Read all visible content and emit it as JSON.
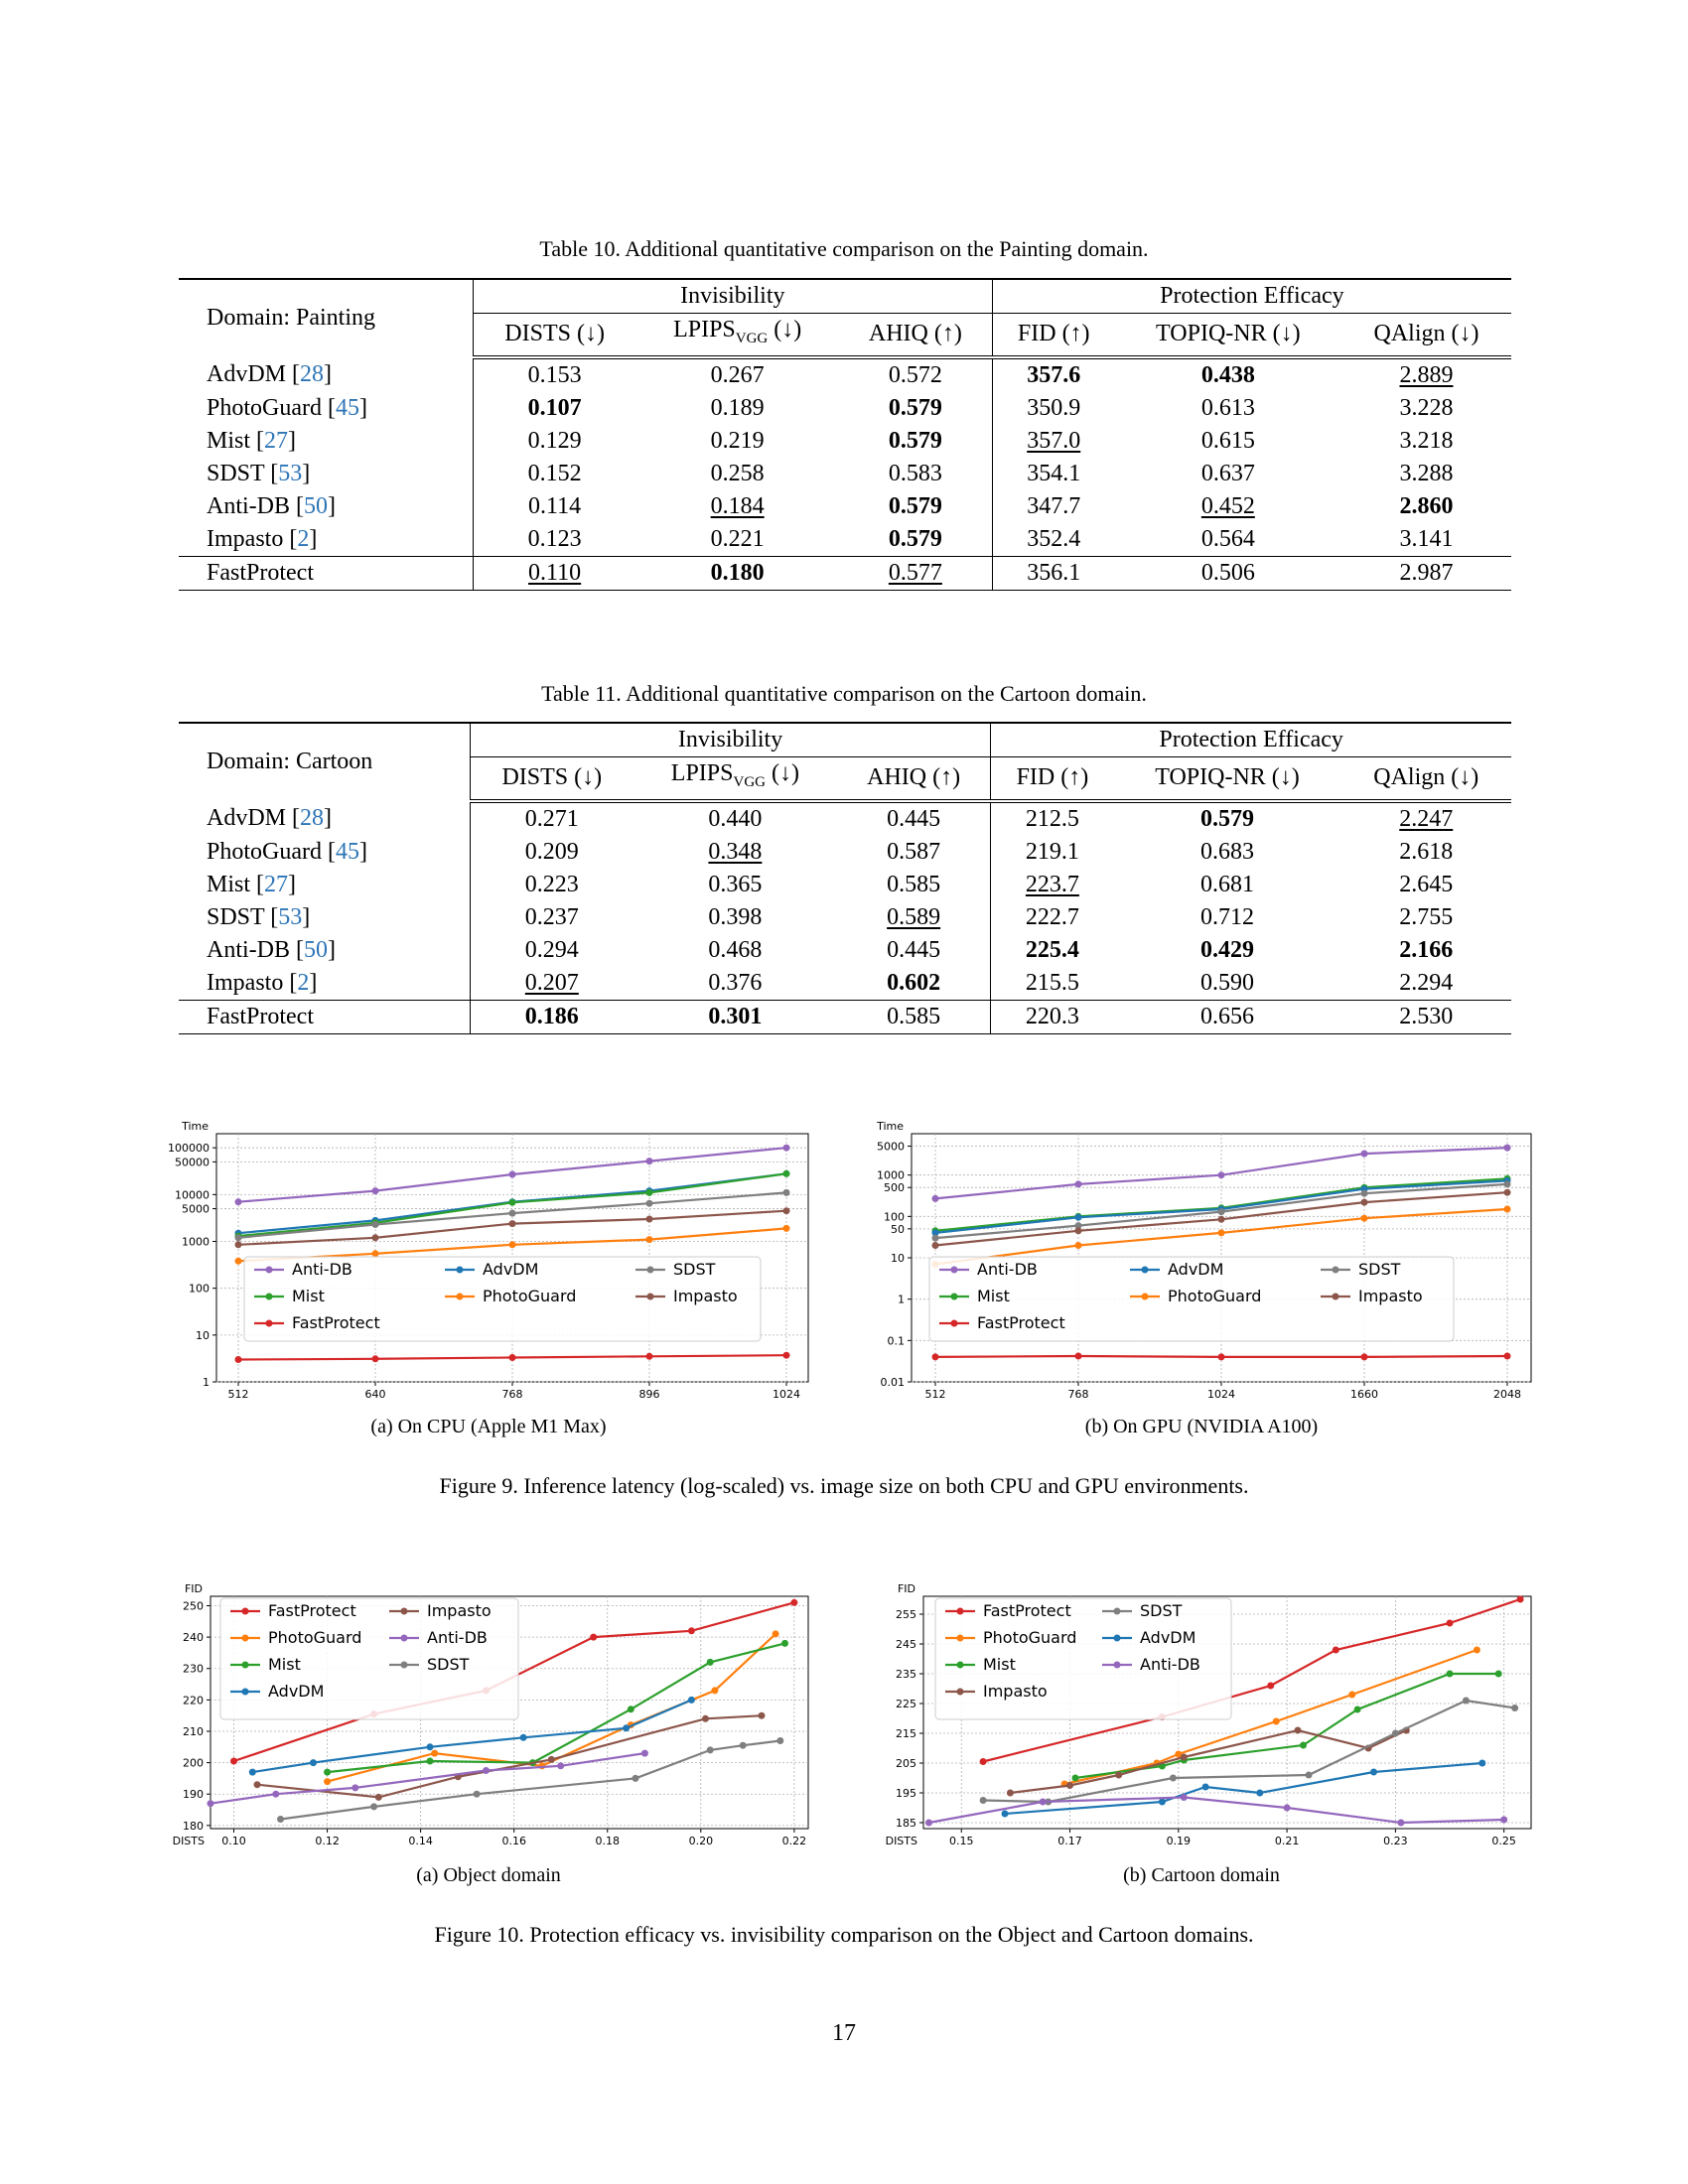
{
  "table10": {
    "caption": "Table 10. Additional quantitative comparison on the Painting domain.",
    "domain_label": "Domain: Painting",
    "group_invisibility": "Invisibility",
    "group_protection": "Protection Efficacy",
    "rows": [
      {
        "name": "AdvDM",
        "ref": "28",
        "v": [
          "0.153",
          "0.267",
          "0.572",
          "357.6",
          "0.438",
          "2.889"
        ]
      },
      {
        "name": "PhotoGuard",
        "ref": "45",
        "v": [
          "0.107",
          "0.189",
          "0.579",
          "350.9",
          "0.613",
          "3.228"
        ]
      },
      {
        "name": "Mist",
        "ref": "27",
        "v": [
          "0.129",
          "0.219",
          "0.579",
          "357.0",
          "0.615",
          "3.218"
        ]
      },
      {
        "name": "SDST",
        "ref": "53",
        "v": [
          "0.152",
          "0.258",
          "0.583",
          "354.1",
          "0.637",
          "3.288"
        ]
      },
      {
        "name": "Anti-DB",
        "ref": "50",
        "v": [
          "0.114",
          "0.184",
          "0.579",
          "347.7",
          "0.452",
          "2.860"
        ]
      },
      {
        "name": "Impasto",
        "ref": "2",
        "v": [
          "0.123",
          "0.221",
          "0.579",
          "352.4",
          "0.564",
          "3.141"
        ]
      },
      {
        "name": "FastProtect",
        "ref": "",
        "v": [
          "0.110",
          "0.180",
          "0.577",
          "356.1",
          "0.506",
          "2.987"
        ]
      }
    ]
  },
  "table11": {
    "caption": "Table 11. Additional quantitative comparison on the Cartoon domain.",
    "domain_label": "Domain: Cartoon",
    "group_invisibility": "Invisibility",
    "group_protection": "Protection Efficacy",
    "rows": [
      {
        "name": "AdvDM",
        "ref": "28",
        "v": [
          "0.271",
          "0.440",
          "0.445",
          "212.5",
          "0.579",
          "2.247"
        ]
      },
      {
        "name": "PhotoGuard",
        "ref": "45",
        "v": [
          "0.209",
          "0.348",
          "0.587",
          "219.1",
          "0.683",
          "2.618"
        ]
      },
      {
        "name": "Mist",
        "ref": "27",
        "v": [
          "0.223",
          "0.365",
          "0.585",
          "223.7",
          "0.681",
          "2.645"
        ]
      },
      {
        "name": "SDST",
        "ref": "53",
        "v": [
          "0.237",
          "0.398",
          "0.589",
          "222.7",
          "0.712",
          "2.755"
        ]
      },
      {
        "name": "Anti-DB",
        "ref": "50",
        "v": [
          "0.294",
          "0.468",
          "0.445",
          "225.4",
          "0.429",
          "2.166"
        ]
      },
      {
        "name": "Impasto",
        "ref": "2",
        "v": [
          "0.207",
          "0.376",
          "0.602",
          "215.5",
          "0.590",
          "2.294"
        ]
      },
      {
        "name": "FastProtect",
        "ref": "",
        "v": [
          "0.186",
          "0.301",
          "0.585",
          "220.3",
          "0.656",
          "2.530"
        ]
      }
    ]
  },
  "columns": {
    "dists": "DISTS (↓)",
    "lpips_main": "LPIPS",
    "lpips_sub": "VGG",
    "lpips_arrow": " (↓)",
    "ahiq": "AHIQ (↑)",
    "fid": "FID (↑)",
    "topiq": "TOPIQ-NR (↓)",
    "qalign": "QAlign (↓)"
  },
  "figure9": {
    "caption": "Figure 9. Inference latency (log-scaled) vs. image size on both CPU and GPU environments.",
    "subcaption_a": "(a) On CPU (Apple M1 Max)",
    "subcaption_b": "(b) On GPU (NVIDIA A100)"
  },
  "figure10": {
    "caption": "Figure 10. Protection efficacy vs. invisibility comparison on the Object and Cartoon domains.",
    "subcaption_a": "(a) Object domain",
    "subcaption_b": "(b) Cartoon domain"
  },
  "page_number": "17",
  "colors": {
    "FastProtect": "#d62728",
    "PhotoGuard": "#ff7f0e",
    "Mist": "#2ca02c",
    "AdvDM": "#1f77b4",
    "Impasto": "#8c564b",
    "Anti-DB": "#9467bd",
    "SDST": "#7f7f7f",
    "cite": "#2e75b6"
  },
  "chart_data": [
    {
      "id": "fig9a",
      "type": "line",
      "yscale": "log",
      "title": "",
      "xlabel": "",
      "ylabel": "Time",
      "categories": [
        "512",
        "640",
        "768",
        "896",
        "1024"
      ],
      "yticks": [
        1,
        10,
        100,
        1000,
        5000,
        10000,
        50000,
        100000
      ],
      "yticklabels": [
        "1",
        "10",
        "100",
        "1000",
        "5000",
        "10000",
        "50000",
        "100000"
      ],
      "ylim": [
        1,
        200000
      ],
      "legend_cols": [
        [
          "Anti-DB",
          "Mist",
          "FastProtect"
        ],
        [
          "AdvDM",
          "PhotoGuard"
        ],
        [
          "SDST",
          "Impasto"
        ]
      ],
      "series": [
        {
          "name": "Anti-DB",
          "values": [
            7000,
            12000,
            27000,
            52000,
            100000
          ]
        },
        {
          "name": "AdvDM",
          "values": [
            1500,
            2800,
            7000,
            12000,
            28000
          ]
        },
        {
          "name": "Mist",
          "values": [
            1300,
            2500,
            6800,
            11000,
            28000
          ]
        },
        {
          "name": "SDST",
          "values": [
            1200,
            2300,
            4000,
            6500,
            11000
          ]
        },
        {
          "name": "Impasto",
          "values": [
            850,
            1200,
            2400,
            3000,
            4500
          ]
        },
        {
          "name": "PhotoGuard",
          "values": [
            380,
            550,
            850,
            1100,
            1900
          ]
        },
        {
          "name": "FastProtect",
          "values": [
            3,
            3.1,
            3.3,
            3.5,
            3.7
          ]
        }
      ]
    },
    {
      "id": "fig9b",
      "type": "line",
      "yscale": "log",
      "title": "",
      "xlabel": "",
      "ylabel": "Time",
      "categories": [
        "512",
        "768",
        "1024",
        "1660",
        "2048"
      ],
      "yticks": [
        0.01,
        0.1,
        1,
        10,
        50,
        100,
        500,
        1000,
        5000
      ],
      "yticklabels": [
        "0.01",
        "0.1",
        "1",
        "10",
        "50",
        "100",
        "500",
        "1000",
        "5000"
      ],
      "ylim": [
        0.01,
        10000
      ],
      "legend_cols": [
        [
          "Anti-DB",
          "Mist",
          "FastProtect"
        ],
        [
          "AdvDM",
          "PhotoGuard"
        ],
        [
          "SDST",
          "Impasto"
        ]
      ],
      "series": [
        {
          "name": "Anti-DB",
          "values": [
            270,
            600,
            1000,
            3300,
            4600
          ]
        },
        {
          "name": "Mist",
          "values": [
            45,
            100,
            160,
            500,
            820
          ]
        },
        {
          "name": "AdvDM",
          "values": [
            40,
            95,
            150,
            460,
            730
          ]
        },
        {
          "name": "SDST",
          "values": [
            30,
            60,
            130,
            360,
            600
          ]
        },
        {
          "name": "Impasto",
          "values": [
            20,
            45,
            85,
            220,
            380
          ]
        },
        {
          "name": "PhotoGuard",
          "values": [
            7,
            20,
            40,
            90,
            150
          ]
        },
        {
          "name": "FastProtect",
          "values": [
            0.04,
            0.042,
            0.04,
            0.04,
            0.042
          ]
        }
      ]
    },
    {
      "id": "fig10a",
      "type": "line",
      "title": "",
      "xlabel": "DISTS",
      "ylabel": "FID",
      "xlim": [
        0.095,
        0.223
      ],
      "ylim": [
        179,
        253
      ],
      "xticks": [
        0.1,
        0.12,
        0.14,
        0.16,
        0.18,
        0.2,
        0.22
      ],
      "xticklabels": [
        "0.10",
        "0.12",
        "0.14",
        "0.16",
        "0.18",
        "0.20",
        "0.22"
      ],
      "yticks": [
        180,
        190,
        200,
        210,
        220,
        230,
        240,
        250
      ],
      "yticklabels": [
        "180",
        "190",
        "200",
        "210",
        "220",
        "230",
        "240",
        "250"
      ],
      "legend_cols": [
        [
          "FastProtect",
          "PhotoGuard",
          "Mist",
          "AdvDM"
        ],
        [
          "Impasto",
          "Anti-DB",
          "SDST"
        ]
      ],
      "series": [
        {
          "name": "FastProtect",
          "x": [
            0.1,
            0.13,
            0.154,
            0.177,
            0.198,
            0.22
          ],
          "y": [
            200.5,
            215.5,
            223,
            240,
            242,
            251
          ]
        },
        {
          "name": "PhotoGuard",
          "x": [
            0.12,
            0.143,
            0.166,
            0.185,
            0.203,
            0.216
          ],
          "y": [
            194,
            203,
            199,
            212,
            223,
            241
          ]
        },
        {
          "name": "Mist",
          "x": [
            0.12,
            0.142,
            0.164,
            0.185,
            0.202,
            0.218
          ],
          "y": [
            197,
            200.5,
            200,
            217,
            232,
            238
          ]
        },
        {
          "name": "AdvDM",
          "x": [
            0.104,
            0.117,
            0.142,
            0.162,
            0.184,
            0.198
          ],
          "y": [
            197,
            200,
            205,
            208,
            211,
            220
          ]
        },
        {
          "name": "Impasto",
          "x": [
            0.105,
            0.131,
            0.148,
            0.168,
            0.201,
            0.213
          ],
          "y": [
            193,
            189,
            195.5,
            201,
            214,
            215
          ]
        },
        {
          "name": "Anti-DB",
          "x": [
            0.095,
            0.109,
            0.126,
            0.154,
            0.17,
            0.188
          ],
          "y": [
            187,
            190,
            192,
            197.5,
            199,
            203
          ]
        },
        {
          "name": "SDST",
          "x": [
            0.11,
            0.13,
            0.152,
            0.186,
            0.202,
            0.209,
            0.217
          ],
          "y": [
            182,
            186,
            190,
            195,
            204,
            205.5,
            207
          ]
        }
      ]
    },
    {
      "id": "fig10b",
      "type": "line",
      "title": "",
      "xlabel": "DISTS",
      "ylabel": "FID",
      "xlim": [
        0.143,
        0.255
      ],
      "ylim": [
        183,
        261
      ],
      "xticks": [
        0.15,
        0.17,
        0.19,
        0.21,
        0.23,
        0.25
      ],
      "xticklabels": [
        "0.15",
        "0.17",
        "0.19",
        "0.21",
        "0.23",
        "0.25"
      ],
      "yticks": [
        185,
        195,
        205,
        215,
        225,
        235,
        245,
        255
      ],
      "yticklabels": [
        "185",
        "195",
        "205",
        "215",
        "225",
        "235",
        "245",
        "255"
      ],
      "legend_cols": [
        [
          "FastProtect",
          "PhotoGuard",
          "Mist",
          "Impasto"
        ],
        [
          "SDST",
          "AdvDM",
          "Anti-DB"
        ]
      ],
      "series": [
        {
          "name": "FastProtect",
          "x": [
            0.154,
            0.187,
            0.207,
            0.219,
            0.24,
            0.253
          ],
          "y": [
            205.5,
            220.5,
            231,
            243,
            252,
            260
          ]
        },
        {
          "name": "PhotoGuard",
          "x": [
            0.169,
            0.186,
            0.19,
            0.208,
            0.222,
            0.245
          ],
          "y": [
            198,
            205,
            208,
            219,
            228,
            243
          ]
        },
        {
          "name": "Mist",
          "x": [
            0.171,
            0.187,
            0.191,
            0.213,
            0.223,
            0.24,
            0.249
          ],
          "y": [
            200,
            204,
            206,
            211,
            223,
            235,
            235
          ]
        },
        {
          "name": "Impasto",
          "x": [
            0.159,
            0.17,
            0.179,
            0.191,
            0.212,
            0.225,
            0.232
          ],
          "y": [
            195,
            197.5,
            201,
            207,
            216,
            210,
            216
          ]
        },
        {
          "name": "SDST",
          "x": [
            0.154,
            0.166,
            0.189,
            0.214,
            0.23,
            0.243,
            0.252
          ],
          "y": [
            192.5,
            192,
            200,
            201,
            215,
            226,
            223.5
          ]
        },
        {
          "name": "AdvDM",
          "x": [
            0.158,
            0.187,
            0.195,
            0.205,
            0.226,
            0.246
          ],
          "y": [
            188,
            192,
            197,
            195,
            202,
            205
          ]
        },
        {
          "name": "Anti-DB",
          "x": [
            0.144,
            0.165,
            0.191,
            0.21,
            0.231,
            0.25
          ],
          "y": [
            185,
            192,
            193.5,
            190,
            185,
            186
          ]
        }
      ]
    }
  ]
}
